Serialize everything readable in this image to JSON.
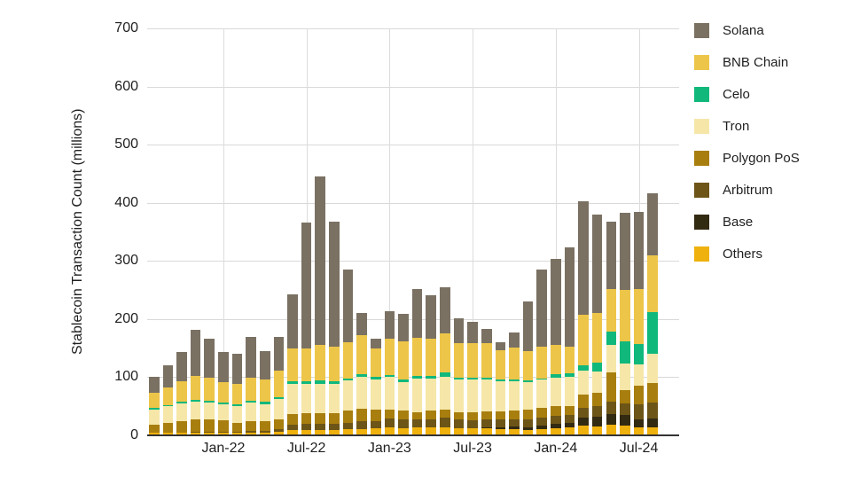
{
  "chart_data": {
    "type": "bar",
    "stacked": true,
    "title": "",
    "ylabel": "Stablecoin Transaction Count (millions)",
    "ylim": [
      0,
      700
    ],
    "yticks": [
      0,
      100,
      200,
      300,
      400,
      500,
      600,
      700
    ],
    "grid": true,
    "legend_position": "right",
    "legend_order": [
      "Solana",
      "BNB Chain",
      "Celo",
      "Tron",
      "Polygon PoS",
      "Arbitrum",
      "Base",
      "Others"
    ],
    "x_ticks": [
      {
        "label": "Jan-22",
        "index": 5
      },
      {
        "label": "Jul-22",
        "index": 11
      },
      {
        "label": "Jan-23",
        "index": 17
      },
      {
        "label": "Jul-23",
        "index": 23
      },
      {
        "label": "Jan-24",
        "index": 29
      },
      {
        "label": "Jul-24",
        "index": 35
      }
    ],
    "categories": [
      "Aug-21",
      "Sep-21",
      "Oct-21",
      "Nov-21",
      "Dec-21",
      "Jan-22",
      "Feb-22",
      "Mar-22",
      "Apr-22",
      "May-22",
      "Jun-22",
      "Jul-22",
      "Aug-22",
      "Sep-22",
      "Oct-22",
      "Nov-22",
      "Dec-22",
      "Jan-23",
      "Feb-23",
      "Mar-23",
      "Apr-23",
      "May-23",
      "Jun-23",
      "Jul-23",
      "Aug-23",
      "Sep-23",
      "Oct-23",
      "Nov-23",
      "Dec-23",
      "Jan-24",
      "Feb-24",
      "Mar-24",
      "Apr-24",
      "May-24",
      "Jun-24",
      "Jul-24",
      "Aug-24"
    ],
    "series": [
      {
        "name": "Others",
        "color": "#EFB10D",
        "values": [
          4,
          4,
          4,
          4,
          4,
          4,
          4,
          5,
          5,
          6,
          9,
          9,
          9,
          9,
          10,
          11,
          12,
          14,
          12,
          14,
          13,
          13,
          12,
          12,
          12,
          11,
          11,
          9,
          11,
          12,
          13,
          17,
          15,
          18,
          17,
          13,
          14
        ]
      },
      {
        "name": "Base",
        "color": "#332A12",
        "values": [
          0,
          0,
          0,
          0,
          0,
          0,
          0,
          0,
          0,
          0,
          0,
          0,
          0,
          0,
          0,
          0,
          0,
          0,
          0,
          0,
          0,
          0,
          0,
          0,
          2,
          3,
          4,
          5,
          6,
          8,
          8,
          14,
          17,
          18,
          18,
          14,
          15
        ]
      },
      {
        "name": "Arbitrum",
        "color": "#6D5518",
        "values": [
          1,
          1,
          1,
          2,
          2,
          2,
          2,
          3,
          3,
          5,
          10,
          11,
          11,
          11,
          12,
          13,
          12,
          15,
          15,
          13,
          15,
          17,
          15,
          14,
          14,
          13,
          13,
          13,
          14,
          14,
          14,
          17,
          19,
          22,
          20,
          26,
          28
        ]
      },
      {
        "name": "Polygon PoS",
        "color": "#A87E0E",
        "values": [
          13,
          17,
          20,
          22,
          22,
          20,
          15,
          16,
          16,
          16,
          17,
          18,
          18,
          18,
          20,
          22,
          20,
          16,
          15,
          13,
          14,
          15,
          13,
          13,
          13,
          14,
          15,
          18,
          17,
          16,
          16,
          22,
          23,
          51,
          23,
          33,
          33
        ]
      },
      {
        "name": "Tron",
        "color": "#F6E7A9",
        "values": [
          27,
          28,
          30,
          30,
          28,
          28,
          30,
          32,
          30,
          35,
          52,
          50,
          50,
          50,
          52,
          55,
          52,
          55,
          50,
          58,
          55,
          55,
          56,
          57,
          55,
          52,
          50,
          47,
          48,
          49,
          49,
          42,
          36,
          46,
          46,
          36,
          51
        ]
      },
      {
        "name": "Celo",
        "color": "#10B87C",
        "values": [
          2,
          2,
          3,
          3,
          3,
          3,
          3,
          4,
          4,
          4,
          5,
          5,
          6,
          5,
          4,
          4,
          4,
          4,
          4,
          5,
          5,
          8,
          3,
          3,
          3,
          3,
          3,
          2,
          2,
          6,
          7,
          8,
          15,
          23,
          37,
          35,
          71
        ]
      },
      {
        "name": "BNB Chain",
        "color": "#EDC549",
        "values": [
          27,
          30,
          35,
          42,
          40,
          35,
          35,
          40,
          38,
          45,
          56,
          57,
          61,
          60,
          62,
          67,
          50,
          62,
          65,
          65,
          64,
          67,
          60,
          60,
          60,
          50,
          55,
          51,
          55,
          50,
          45,
          87,
          86,
          74,
          89,
          95,
          97
        ]
      },
      {
        "name": "Solana",
        "color": "#7A7163",
        "values": [
          26,
          38,
          50,
          78,
          68,
          52,
          52,
          69,
          49,
          59,
          94,
          216,
          291,
          215,
          126,
          38,
          17,
          47,
          48,
          84,
          75,
          80,
          43,
          36,
          24,
          15,
          26,
          85,
          133,
          149,
          172,
          196,
          169,
          116,
          133,
          132,
          108
        ]
      }
    ]
  }
}
